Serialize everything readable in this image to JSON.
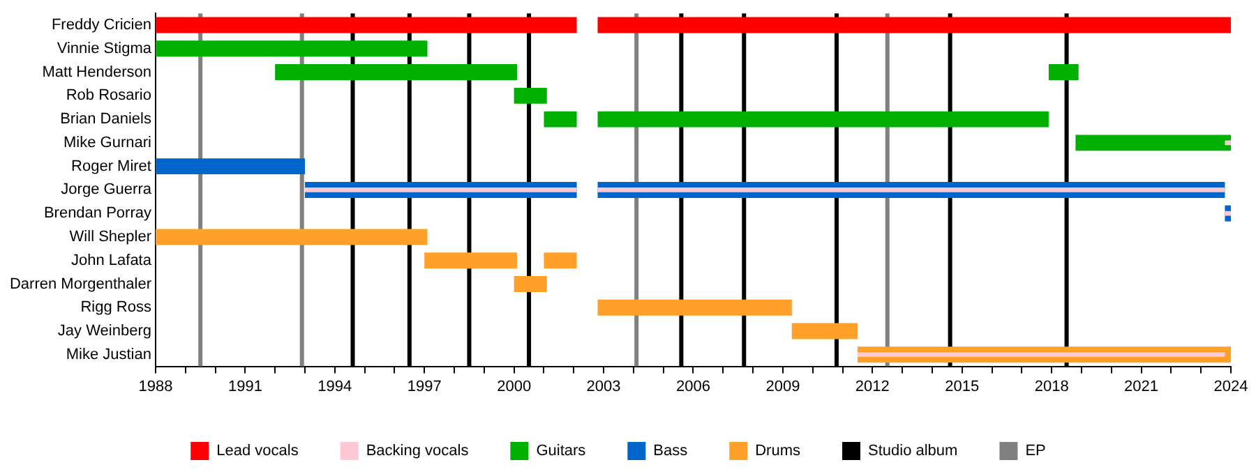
{
  "chart_data": {
    "type": "bar",
    "orientation": "horizontal",
    "categories": [
      "Freddy Cricien",
      "Vinnie Stigma",
      "Matt Henderson",
      "Rob Rosario",
      "Brian Daniels",
      "Mike Gurnari",
      "Roger Miret",
      "Jorge Guerra",
      "Brendan Porray",
      "Will Shepler",
      "John Lafata",
      "Darren Morgenthaler",
      "Rigg Ross",
      "Jay Weinberg",
      "Mike Justian"
    ],
    "series": [
      {
        "name": "Lead vocals",
        "color": "#ff0000",
        "base": [
          1988,
          null,
          null,
          null,
          null,
          null,
          null,
          null,
          null,
          null,
          null,
          null,
          null,
          null,
          null
        ],
        "values": [
          14.1,
          null,
          null,
          null,
          null,
          null,
          null,
          null,
          null,
          null,
          null,
          null,
          null,
          null,
          null
        ]
      },
      {
        "color": "#ff0000",
        "base": [
          2002.8,
          null,
          null,
          null,
          null,
          null,
          null,
          null,
          null,
          null,
          null,
          null,
          null,
          null,
          null
        ],
        "values": [
          21.2,
          null,
          null,
          null,
          null,
          null,
          null,
          null,
          null,
          null,
          null,
          null,
          null,
          null,
          null
        ]
      },
      {
        "name": "Backing vocals",
        "color": "#ffc8d2",
        "base": [
          null,
          null,
          null,
          null,
          null,
          2023.8,
          null,
          1993,
          2023.8,
          null,
          null,
          null,
          null,
          null,
          2011.5
        ],
        "values": [
          null,
          null,
          null,
          null,
          null,
          0.2,
          null,
          9.1,
          0.2,
          null,
          null,
          null,
          null,
          null,
          12.3
        ]
      },
      {
        "color": "#ffc8d2",
        "base": [
          null,
          null,
          null,
          null,
          null,
          null,
          null,
          2002.8,
          null,
          null,
          null,
          null,
          null,
          null,
          null
        ],
        "values": [
          null,
          null,
          null,
          null,
          null,
          null,
          null,
          21,
          null,
          null,
          null,
          null,
          null,
          null,
          null
        ]
      },
      {
        "name": "Guitars",
        "color": "#00b000",
        "base": [
          null,
          1988,
          1992,
          2000,
          2001,
          2018.8,
          null,
          null,
          null,
          null,
          null,
          null,
          null,
          null,
          null
        ],
        "values": [
          null,
          9.1,
          8.1,
          1.1,
          1.1,
          5.2,
          null,
          null,
          null,
          null,
          null,
          null,
          null,
          null,
          null
        ]
      },
      {
        "color": "#00b000",
        "base": [
          null,
          null,
          2017.9,
          null,
          2002.8,
          null,
          null,
          null,
          null,
          null,
          null,
          null,
          null,
          null,
          null
        ],
        "values": [
          null,
          null,
          1,
          null,
          15.1,
          null,
          null,
          null,
          null,
          null,
          null,
          null,
          null,
          null,
          null
        ]
      },
      {
        "name": "Bass",
        "color": "#0066cc",
        "base": [
          null,
          null,
          null,
          null,
          null,
          null,
          1988,
          1993,
          2023.8,
          null,
          null,
          null,
          null,
          null,
          null
        ],
        "values": [
          null,
          null,
          null,
          null,
          null,
          null,
          5,
          9.1,
          0.2,
          null,
          null,
          null,
          null,
          null,
          null
        ]
      },
      {
        "color": "#0066cc",
        "base": [
          null,
          null,
          null,
          null,
          null,
          null,
          null,
          2002.8,
          null,
          null,
          null,
          null,
          null,
          null,
          null
        ],
        "values": [
          null,
          null,
          null,
          null,
          null,
          null,
          null,
          21,
          null,
          null,
          null,
          null,
          null,
          null,
          null
        ]
      },
      {
        "name": "Drums",
        "color": "#ffa028",
        "base": [
          null,
          null,
          null,
          null,
          null,
          null,
          null,
          null,
          null,
          1988,
          1997,
          2000,
          2002.8,
          2009.3,
          2011.5
        ],
        "values": [
          null,
          null,
          null,
          null,
          null,
          null,
          null,
          null,
          null,
          9.1,
          3.1,
          1.1,
          6.5,
          2.2,
          12.5
        ]
      },
      {
        "color": "#ffa028",
        "base": [
          null,
          null,
          null,
          null,
          null,
          null,
          null,
          null,
          null,
          null,
          2001,
          null,
          null,
          null,
          null
        ],
        "values": [
          null,
          null,
          null,
          null,
          null,
          null,
          null,
          null,
          null,
          null,
          1.1,
          null,
          null,
          null,
          null
        ]
      }
    ],
    "ref_lines": [
      {
        "axis": "x",
        "value": 1994.6,
        "label": "Studio album",
        "color": "#000000"
      },
      {
        "axis": "x",
        "value": 1996.5,
        "color": "#000000"
      },
      {
        "axis": "x",
        "value": 1998.5,
        "color": "#000000"
      },
      {
        "axis": "x",
        "value": 2000.5,
        "color": "#000000"
      },
      {
        "axis": "x",
        "value": 2005.6,
        "color": "#000000"
      },
      {
        "axis": "x",
        "value": 2007.7,
        "color": "#000000"
      },
      {
        "axis": "x",
        "value": 2010.8,
        "color": "#000000"
      },
      {
        "axis": "x",
        "value": 2014.6,
        "color": "#000000"
      },
      {
        "axis": "x",
        "value": 2018.5,
        "color": "#000000"
      },
      {
        "axis": "x",
        "value": 1989.5,
        "label": "EP",
        "color": "#808080"
      },
      {
        "axis": "x",
        "value": 1992.9,
        "color": "#808080"
      },
      {
        "axis": "x",
        "value": 2004.1,
        "color": "#808080"
      },
      {
        "axis": "x",
        "value": 2012.5,
        "color": "#808080"
      }
    ],
    "xlim": [
      1988,
      2024
    ],
    "xticks": [
      1988,
      {
        "value": 1989,
        "label": null
      },
      {
        "value": 1990,
        "label": null
      },
      1991,
      {
        "value": 1992,
        "label": null
      },
      {
        "value": 1993,
        "label": null
      },
      1994,
      {
        "value": 1995,
        "label": null
      },
      {
        "value": 1996,
        "label": null
      },
      1997,
      {
        "value": 1998,
        "label": null
      },
      {
        "value": 1999,
        "label": null
      },
      2000,
      {
        "value": 2001,
        "label": null
      },
      {
        "value": 2002,
        "label": null
      },
      2003,
      {
        "value": 2004,
        "label": null
      },
      {
        "value": 2005,
        "label": null
      },
      2006,
      {
        "value": 2007,
        "label": null
      },
      {
        "value": 2008,
        "label": null
      },
      2009,
      {
        "value": 2010,
        "label": null
      },
      {
        "value": 2011,
        "label": null
      },
      2012,
      {
        "value": 2013,
        "label": null
      },
      {
        "value": 2014,
        "label": null
      },
      2015,
      {
        "value": 2016,
        "label": null
      },
      {
        "value": 2017,
        "label": null
      },
      2018,
      {
        "value": 2019,
        "label": null
      },
      {
        "value": 2020,
        "label": null
      },
      2021,
      {
        "value": 2022,
        "label": null
      },
      {
        "value": 2023,
        "label": null
      },
      2024
    ],
    "grid": false,
    "legend": "bottom"
  }
}
